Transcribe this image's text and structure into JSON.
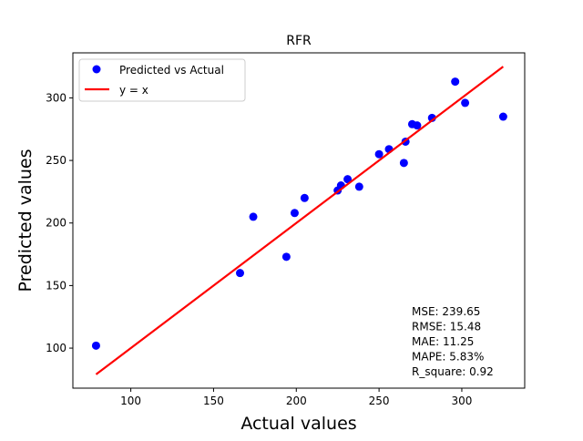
{
  "chart_data": {
    "type": "scatter",
    "title": "RFR",
    "xlabel": "Actual values",
    "ylabel": "Predicted values",
    "xlim": [
      65,
      338
    ],
    "ylim": [
      68,
      336
    ],
    "xticks": [
      100,
      150,
      200,
      250,
      300
    ],
    "yticks": [
      100,
      150,
      200,
      250,
      300
    ],
    "grid": false,
    "legend_position": "top-left",
    "colors": {
      "points": "#0000ff",
      "line": "#ff0000"
    },
    "series": [
      {
        "name": "Predicted vs Actual",
        "kind": "scatter",
        "points": [
          [
            79,
            102
          ],
          [
            166,
            160
          ],
          [
            174,
            205
          ],
          [
            194,
            173
          ],
          [
            199,
            208
          ],
          [
            205,
            220
          ],
          [
            225,
            226
          ],
          [
            227,
            230
          ],
          [
            231,
            235
          ],
          [
            238,
            229
          ],
          [
            250,
            255
          ],
          [
            256,
            259
          ],
          [
            266,
            265
          ],
          [
            265,
            248
          ],
          [
            270,
            279
          ],
          [
            273,
            278
          ],
          [
            282,
            284
          ],
          [
            296,
            313
          ],
          [
            302,
            296
          ],
          [
            325,
            285
          ]
        ]
      },
      {
        "name": "y = x",
        "kind": "line",
        "points": [
          [
            79,
            79
          ],
          [
            325,
            325
          ]
        ]
      }
    ],
    "annotations": [
      "MSE: 239.65",
      "RMSE: 15.48",
      "MAE: 11.25",
      "MAPE: 5.83%",
      "R_square: 0.92"
    ]
  }
}
